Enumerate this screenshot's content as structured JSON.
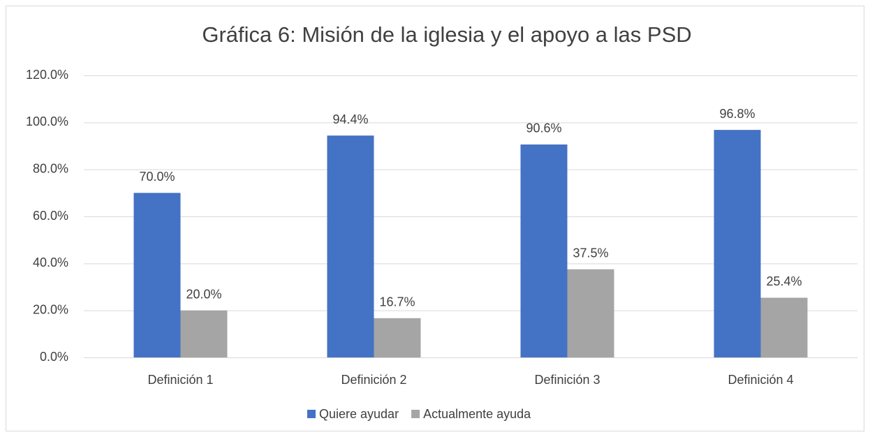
{
  "chart_data": {
    "type": "bar",
    "title": "Gráfica 6: Misión de la iglesia y el apoyo a las PSD",
    "categories": [
      "Definición 1",
      "Definición 2",
      "Definición 3",
      "Definición 4"
    ],
    "series": [
      {
        "name": "Quiere ayudar",
        "color": "#4472c4",
        "values": [
          70.0,
          94.4,
          90.6,
          96.8
        ],
        "value_labels": [
          "70.0%",
          "94.4%",
          "90.6%",
          "96.8%"
        ]
      },
      {
        "name": "Actualmente ayuda",
        "color": "#a5a5a5",
        "values": [
          20.0,
          16.7,
          37.5,
          25.4
        ],
        "value_labels": [
          "20.0%",
          "16.7%",
          "37.5%",
          "25.4%"
        ]
      }
    ],
    "ylim": [
      0,
      120
    ],
    "yticks": [
      {
        "value": 0,
        "label": "0.0%"
      },
      {
        "value": 20,
        "label": "20.0%"
      },
      {
        "value": 40,
        "label": "40.0%"
      },
      {
        "value": 60,
        "label": "60.0%"
      },
      {
        "value": 80,
        "label": "80.0%"
      },
      {
        "value": 100,
        "label": "100.0%"
      },
      {
        "value": 120,
        "label": "120.0%"
      }
    ],
    "grid": true,
    "legend": "bottom"
  }
}
